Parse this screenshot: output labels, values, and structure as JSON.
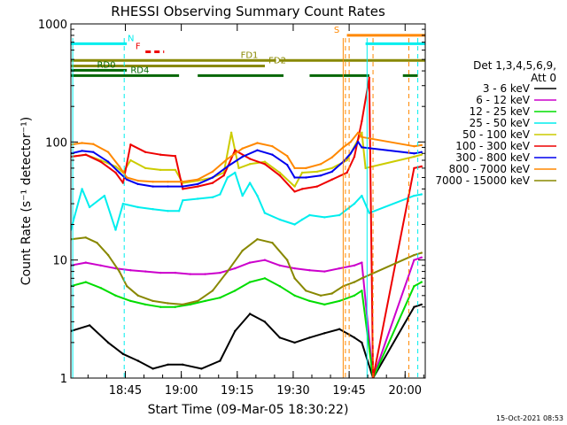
{
  "chart_data": {
    "type": "line",
    "title": "RHESSI Observing Summary Count Rates",
    "xlabel": "Start Time (09-Mar-05 18:30:22)",
    "ylabel": "Count Rate (s⁻¹ detector⁻¹)",
    "timestamp": "15-Oct-2021 08:53",
    "y_scale": "log",
    "ylim": [
      1,
      1000
    ],
    "xlim_minutes": [
      0,
      95
    ],
    "x_ticks": [
      {
        "min": 14.6,
        "label": "18:45"
      },
      {
        "min": 29.6,
        "label": "19:00"
      },
      {
        "min": 44.6,
        "label": "19:15"
      },
      {
        "min": 59.6,
        "label": "19:30"
      },
      {
        "min": 74.6,
        "label": "19:45"
      },
      {
        "min": 89.6,
        "label": "20:00"
      }
    ],
    "y_ticks": [
      {
        "v": 1,
        "label": "1"
      },
      {
        "v": 10,
        "label": "10"
      },
      {
        "v": 100,
        "label": "100"
      },
      {
        "v": 1000,
        "label": "1000"
      }
    ],
    "legend": {
      "header": [
        "Det 1,3,4,5,6,9,",
        "Att 0"
      ],
      "placement": "right"
    },
    "series": [
      {
        "name": "3 - 6 keV",
        "color": "#000000",
        "points": [
          [
            0,
            2.5
          ],
          [
            5,
            2.8
          ],
          [
            10,
            2.0
          ],
          [
            14,
            1.6
          ],
          [
            18,
            1.4
          ],
          [
            22,
            1.2
          ],
          [
            26,
            1.3
          ],
          [
            30,
            1.3
          ],
          [
            35,
            1.2
          ],
          [
            40,
            1.4
          ],
          [
            44,
            2.5
          ],
          [
            48,
            3.5
          ],
          [
            52,
            3.0
          ],
          [
            56,
            2.2
          ],
          [
            60,
            2.0
          ],
          [
            64,
            2.2
          ],
          [
            68,
            2.4
          ],
          [
            72,
            2.6
          ],
          [
            76,
            2.2
          ],
          [
            78,
            2.0
          ],
          [
            81,
            1.0
          ],
          [
            92,
            4.0
          ],
          [
            94,
            4.2
          ]
        ]
      },
      {
        "name": "6 - 12 keV",
        "color": "#cc00cc",
        "points": [
          [
            0,
            9
          ],
          [
            4,
            9.5
          ],
          [
            8,
            9
          ],
          [
            12,
            8.5
          ],
          [
            16,
            8.2
          ],
          [
            20,
            8.0
          ],
          [
            24,
            7.8
          ],
          [
            28,
            7.8
          ],
          [
            32,
            7.6
          ],
          [
            36,
            7.6
          ],
          [
            40,
            7.8
          ],
          [
            44,
            8.5
          ],
          [
            48,
            9.5
          ],
          [
            52,
            10
          ],
          [
            56,
            9
          ],
          [
            60,
            8.5
          ],
          [
            64,
            8.2
          ],
          [
            68,
            8.0
          ],
          [
            72,
            8.5
          ],
          [
            76,
            9.0
          ],
          [
            78,
            9.5
          ],
          [
            81,
            1.0
          ],
          [
            92,
            10
          ],
          [
            94,
            10.5
          ]
        ]
      },
      {
        "name": "12 - 25 keV",
        "color": "#00dd00",
        "points": [
          [
            0,
            6.0
          ],
          [
            4,
            6.5
          ],
          [
            8,
            5.8
          ],
          [
            12,
            5.0
          ],
          [
            16,
            4.5
          ],
          [
            20,
            4.2
          ],
          [
            24,
            4.0
          ],
          [
            28,
            4.0
          ],
          [
            32,
            4.2
          ],
          [
            36,
            4.5
          ],
          [
            40,
            4.8
          ],
          [
            44,
            5.5
          ],
          [
            48,
            6.5
          ],
          [
            52,
            7.0
          ],
          [
            56,
            6.0
          ],
          [
            60,
            5.0
          ],
          [
            64,
            4.5
          ],
          [
            68,
            4.2
          ],
          [
            72,
            4.5
          ],
          [
            76,
            5.0
          ],
          [
            78,
            5.5
          ],
          [
            81,
            1.0
          ],
          [
            92,
            6.0
          ],
          [
            94,
            6.5
          ]
        ]
      },
      {
        "name": "25 - 50 keV",
        "color": "#00eeee",
        "points": [
          [
            0,
            18
          ],
          [
            3,
            40
          ],
          [
            5,
            28
          ],
          [
            9,
            35
          ],
          [
            12,
            18
          ],
          [
            14,
            30
          ],
          [
            18,
            28
          ],
          [
            22,
            27
          ],
          [
            26,
            26
          ],
          [
            29,
            26
          ],
          [
            30,
            32
          ],
          [
            34,
            33
          ],
          [
            38,
            34
          ],
          [
            40,
            36
          ],
          [
            42,
            50
          ],
          [
            44,
            55
          ],
          [
            46,
            35
          ],
          [
            48,
            45
          ],
          [
            50,
            35
          ],
          [
            52,
            25
          ],
          [
            56,
            22
          ],
          [
            60,
            20
          ],
          [
            62,
            22
          ],
          [
            64,
            24
          ],
          [
            68,
            23
          ],
          [
            72,
            24
          ],
          [
            76,
            30
          ],
          [
            78,
            35
          ],
          [
            80,
            25
          ],
          [
            92,
            35
          ],
          [
            94,
            36
          ]
        ]
      },
      {
        "name": "50 - 100 keV",
        "color": "#cccc00",
        "points": [
          [
            0,
            75
          ],
          [
            4,
            78
          ],
          [
            8,
            70
          ],
          [
            12,
            62
          ],
          [
            14,
            55
          ],
          [
            16,
            70
          ],
          [
            20,
            60
          ],
          [
            24,
            58
          ],
          [
            28,
            58
          ],
          [
            30,
            45
          ],
          [
            34,
            47
          ],
          [
            38,
            50
          ],
          [
            41,
            55
          ],
          [
            43,
            120
          ],
          [
            45,
            60
          ],
          [
            48,
            65
          ],
          [
            52,
            68
          ],
          [
            56,
            55
          ],
          [
            60,
            42
          ],
          [
            62,
            55
          ],
          [
            66,
            56
          ],
          [
            70,
            60
          ],
          [
            74,
            70
          ],
          [
            78,
            120
          ],
          [
            79,
            60
          ],
          [
            92,
            75
          ],
          [
            94,
            78
          ]
        ]
      },
      {
        "name": "100 - 300 keV",
        "color": "#ee0000",
        "points": [
          [
            0,
            75
          ],
          [
            4,
            78
          ],
          [
            8,
            68
          ],
          [
            12,
            55
          ],
          [
            14,
            45
          ],
          [
            16,
            95
          ],
          [
            20,
            82
          ],
          [
            24,
            78
          ],
          [
            28,
            76
          ],
          [
            30,
            40
          ],
          [
            34,
            42
          ],
          [
            38,
            45
          ],
          [
            41,
            52
          ],
          [
            44,
            85
          ],
          [
            48,
            72
          ],
          [
            52,
            65
          ],
          [
            56,
            52
          ],
          [
            60,
            38
          ],
          [
            62,
            40
          ],
          [
            66,
            42
          ],
          [
            70,
            48
          ],
          [
            74,
            55
          ],
          [
            76,
            75
          ],
          [
            78,
            150
          ],
          [
            80,
            350
          ],
          [
            81,
            1.0
          ],
          [
            92,
            60
          ],
          [
            94,
            62
          ]
        ]
      },
      {
        "name": "300 - 800 keV",
        "color": "#0000ee",
        "points": [
          [
            0,
            80
          ],
          [
            3,
            84
          ],
          [
            6,
            82
          ],
          [
            10,
            68
          ],
          [
            13,
            55
          ],
          [
            15,
            48
          ],
          [
            18,
            44
          ],
          [
            22,
            42
          ],
          [
            26,
            42
          ],
          [
            30,
            42
          ],
          [
            34,
            44
          ],
          [
            38,
            50
          ],
          [
            42,
            62
          ],
          [
            46,
            75
          ],
          [
            50,
            85
          ],
          [
            54,
            78
          ],
          [
            58,
            64
          ],
          [
            60,
            50
          ],
          [
            63,
            50
          ],
          [
            67,
            52
          ],
          [
            70,
            56
          ],
          [
            73,
            68
          ],
          [
            75,
            80
          ],
          [
            77,
            100
          ],
          [
            78,
            90
          ],
          [
            92,
            80
          ],
          [
            94,
            82
          ]
        ]
      },
      {
        "name": "800 - 7000 keV",
        "color": "#ff8800",
        "points": [
          [
            0,
            95
          ],
          [
            3,
            98
          ],
          [
            6,
            96
          ],
          [
            10,
            82
          ],
          [
            13,
            62
          ],
          [
            15,
            50
          ],
          [
            18,
            47
          ],
          [
            22,
            46
          ],
          [
            26,
            46
          ],
          [
            30,
            46
          ],
          [
            34,
            48
          ],
          [
            38,
            56
          ],
          [
            42,
            72
          ],
          [
            46,
            88
          ],
          [
            50,
            98
          ],
          [
            54,
            92
          ],
          [
            58,
            76
          ],
          [
            60,
            60
          ],
          [
            63,
            60
          ],
          [
            67,
            65
          ],
          [
            70,
            74
          ],
          [
            73,
            90
          ],
          [
            75,
            100
          ],
          [
            77,
            120
          ],
          [
            78,
            110
          ],
          [
            92,
            92
          ],
          [
            94,
            94
          ]
        ]
      },
      {
        "name": "7000 - 15000 keV",
        "color": "#888800",
        "points": [
          [
            0,
            15
          ],
          [
            4,
            15.5
          ],
          [
            7,
            14
          ],
          [
            10,
            11
          ],
          [
            13,
            8
          ],
          [
            15,
            6
          ],
          [
            18,
            5
          ],
          [
            22,
            4.5
          ],
          [
            26,
            4.3
          ],
          [
            30,
            4.2
          ],
          [
            34,
            4.5
          ],
          [
            38,
            5.5
          ],
          [
            42,
            8
          ],
          [
            46,
            12
          ],
          [
            50,
            15
          ],
          [
            54,
            14
          ],
          [
            58,
            10
          ],
          [
            60,
            7
          ],
          [
            63,
            5.5
          ],
          [
            67,
            5
          ],
          [
            70,
            5.2
          ],
          [
            73,
            6
          ],
          [
            76,
            6.5
          ],
          [
            78,
            7
          ],
          [
            92,
            11
          ],
          [
            94,
            11.5
          ]
        ]
      }
    ],
    "vertical_lines": [
      {
        "min": 0.5,
        "color": "#00eeee",
        "style": "solid"
      },
      {
        "min": 14.3,
        "color": "#00eeee",
        "style": "dashed"
      },
      {
        "min": 79.4,
        "color": "#00eeee",
        "style": "solid"
      },
      {
        "min": 93.0,
        "color": "#00eeee",
        "style": "dashed"
      },
      {
        "min": 73.0,
        "color": "#ff8800",
        "style": "solid"
      },
      {
        "min": 73.6,
        "color": "#ff8800",
        "style": "dashed"
      },
      {
        "min": 74.6,
        "color": "#ff8800",
        "style": "dashed"
      },
      {
        "min": 81.0,
        "color": "#ff8800",
        "style": "dashed"
      },
      {
        "min": 90.6,
        "color": "#ff8800",
        "style": "dashed"
      }
    ],
    "flags": [
      {
        "label": "N",
        "color": "#00eeee",
        "value": 680,
        "segments": [
          [
            0,
            15
          ]
        ],
        "style": "solid",
        "label_at": 15.2
      },
      {
        "label": "N",
        "color": "#00eeee",
        "value": 680,
        "segments": [
          [
            79,
            95
          ]
        ],
        "style": "solid",
        "label_at": null
      },
      {
        "label": "F",
        "color": "#ee0000",
        "value": 580,
        "segments": [
          [
            20,
            25
          ]
        ],
        "style": "dashed",
        "label_at": 17.3
      },
      {
        "label": "S",
        "color": "#ff8800",
        "value": 800,
        "segments": [
          [
            74,
            95
          ]
        ],
        "style": "solid",
        "label_at": 70.5
      },
      {
        "label": "FD1",
        "color": "#888800",
        "value": 490,
        "segments": [
          [
            0,
            55
          ]
        ],
        "style": "solid",
        "label_at": 45.5
      },
      {
        "label": "FD1",
        "color": "#888800",
        "value": 490,
        "segments": [
          [
            56,
            95
          ]
        ],
        "style": "solid",
        "label_at": null
      },
      {
        "label": "FD2",
        "color": "#888800",
        "value": 440,
        "segments": [
          [
            0,
            52
          ]
        ],
        "style": "solid",
        "label_at": 53.0
      },
      {
        "label": "RD0",
        "color": "#006600",
        "value": 405,
        "segments": [
          [
            0,
            15
          ]
        ],
        "style": "solid",
        "label_at": 7.0
      },
      {
        "label": "RD4",
        "color": "#006600",
        "value": 365,
        "segments": [
          [
            0,
            29
          ],
          [
            34,
            57
          ],
          [
            64,
            80
          ],
          [
            89,
            93
          ]
        ],
        "style": "solid",
        "label_at": 16.0
      }
    ]
  }
}
